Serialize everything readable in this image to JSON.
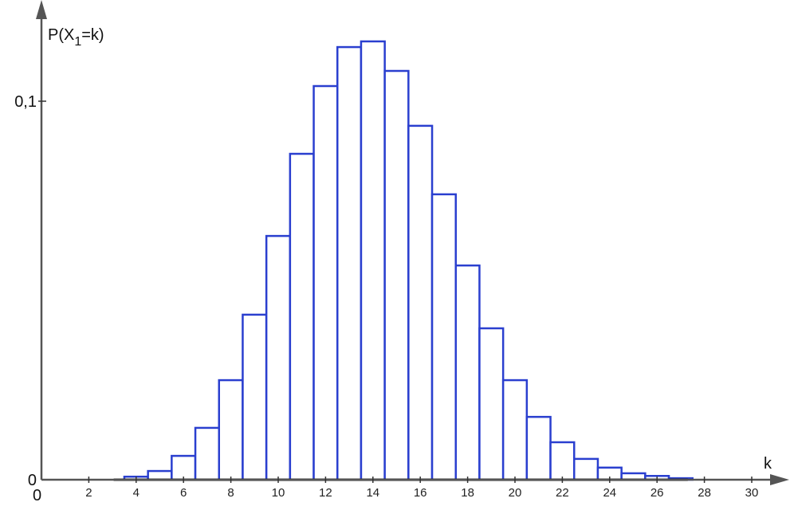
{
  "chart_data": {
    "type": "bar",
    "title": "",
    "ylabel_main": "P(X",
    "ylabel_sub": "1",
    "ylabel_end": "=k)",
    "xlabel": "k",
    "xlim": [
      0,
      31
    ],
    "ylim": [
      0,
      0.12
    ],
    "x_ticks": [
      "2",
      "4",
      "6",
      "8",
      "10",
      "12",
      "14",
      "16",
      "18",
      "20",
      "22",
      "24",
      "26",
      "28",
      "30"
    ],
    "x_origin_label": "0",
    "y_ticks": [
      {
        "value": 0,
        "label": "0"
      },
      {
        "value": 0.1,
        "label": "0,1"
      }
    ],
    "grid": false,
    "bar_color": "#2a3fcf",
    "categories": [
      4,
      5,
      6,
      7,
      8,
      9,
      10,
      11,
      12,
      13,
      14,
      15,
      16,
      17,
      18,
      19,
      20,
      21,
      22,
      23,
      24,
      25,
      26,
      27
    ],
    "values": [
      0.0008,
      0.0023,
      0.0063,
      0.0137,
      0.0263,
      0.0436,
      0.0644,
      0.0861,
      0.104,
      0.1143,
      0.1158,
      0.108,
      0.0935,
      0.0754,
      0.0566,
      0.04,
      0.0263,
      0.0166,
      0.0099,
      0.0055,
      0.0032,
      0.0017,
      0.001,
      0.0004
    ]
  }
}
